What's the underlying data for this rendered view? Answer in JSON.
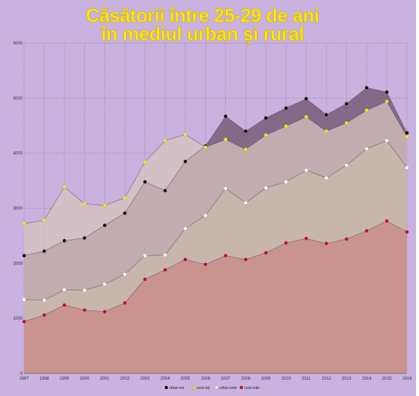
{
  "chart_data": {
    "type": "area",
    "title_lines": [
      "Căsătorii între 25-29 de ani",
      "în mediul urban și rural"
    ],
    "x": [
      "1997",
      "1998",
      "1999",
      "2000",
      "2001",
      "2002",
      "2003",
      "2004",
      "2005",
      "2006",
      "2007",
      "2008",
      "2009",
      "2010",
      "2011",
      "2012",
      "2013",
      "2014",
      "2015",
      "2016"
    ],
    "ylim": [
      0,
      6000
    ],
    "yticks": [
      "0",
      "1000",
      "2000",
      "3000",
      "4000",
      "5000",
      "6000"
    ],
    "grid": true,
    "legend_position": "bottom",
    "series": [
      {
        "name": "urban soț",
        "color": "#000000",
        "fill": "#7a5a78",
        "values": [
          2140,
          2220,
          2410,
          2460,
          2690,
          2910,
          3480,
          3320,
          3850,
          4130,
          4670,
          4400,
          4640,
          4820,
          4990,
          4700,
          4900,
          5190,
          5110,
          4370
        ]
      },
      {
        "name": "rural soț",
        "color": "#ffea00",
        "fill": "#d6c3bc",
        "values": [
          2720,
          2780,
          3390,
          3080,
          3050,
          3190,
          3840,
          4230,
          4340,
          4110,
          4250,
          4070,
          4330,
          4490,
          4660,
          4400,
          4550,
          4780,
          4940,
          4300
        ]
      },
      {
        "name": "urban soție",
        "color": "#ffffff",
        "fill": "#c9b8aa",
        "values": [
          1340,
          1330,
          1520,
          1510,
          1620,
          1800,
          2140,
          2150,
          2630,
          2870,
          3360,
          3100,
          3370,
          3480,
          3690,
          3550,
          3780,
          4080,
          4230,
          3740
        ]
      },
      {
        "name": "rural soție",
        "color": "#cc0022",
        "fill": "#c98a84",
        "values": [
          940,
          1060,
          1240,
          1150,
          1120,
          1280,
          1710,
          1880,
          2070,
          1980,
          2140,
          2070,
          2190,
          2370,
          2450,
          2360,
          2440,
          2590,
          2770,
          2570
        ]
      }
    ]
  },
  "colors": {
    "page_background": "#c9b2e0",
    "grid": "#6b5a6b"
  }
}
